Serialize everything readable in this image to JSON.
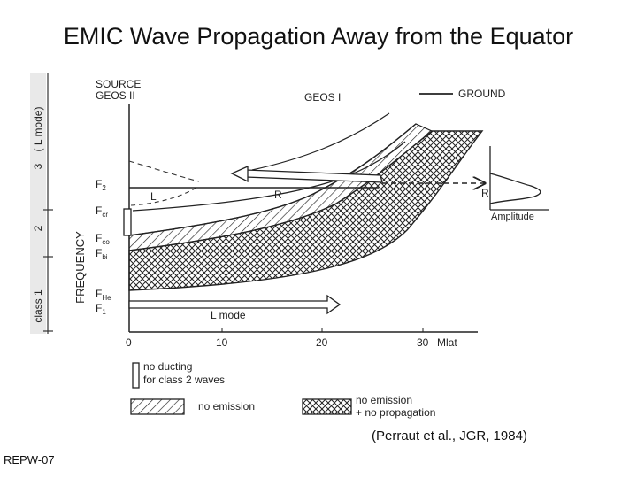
{
  "slide": {
    "title": "EMIC Wave Propagation Away from the Equator",
    "citation": "(Perraut et al., JGR, 1984)",
    "code": "REPW-07"
  },
  "figure": {
    "source_line1": "SOURCE",
    "source_line2": "GEOS II",
    "geos1_label": "GEOS I",
    "ground_label": "GROUND",
    "left_axis": {
      "mode_label": "( L mode)",
      "tick_3": "3",
      "tick_2": "2",
      "tick_class1": "class 1"
    },
    "frequency_label": "FREQUENCY",
    "freq_labels": {
      "f2": "F",
      "f2_sub": "2",
      "fcr": "F",
      "fcr_sub": "cr",
      "fco": "F",
      "fco_sub": "co",
      "fbi": "F",
      "fbi_sub": "bi",
      "fhe": "F",
      "fhe_sub": "He",
      "f1": "F",
      "f1_sub": "1"
    },
    "curve_labels": {
      "L": "L",
      "R": "R",
      "R_ground": "R",
      "L_mode": "L mode"
    },
    "amplitude_label": "Amplitude",
    "x_axis": {
      "ticks": [
        "0",
        "10",
        "20",
        "30"
      ],
      "unit": "Mlat"
    },
    "legend": {
      "no_ducting_line1": "no ducting",
      "no_ducting_line2": "for class 2 waves",
      "no_emission": "no emission",
      "no_emission_prop_line1": "no emission",
      "no_emission_prop_line2": "+ no propagation"
    }
  }
}
